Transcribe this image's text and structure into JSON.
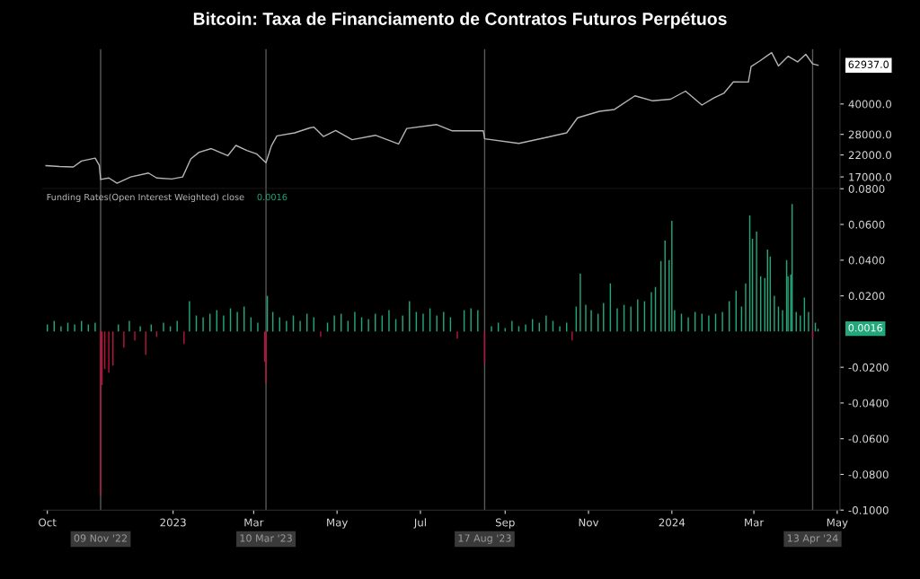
{
  "chart_data": [
    {
      "type": "line",
      "title": "Bitcoin: Taxa de Financiamento de Contratos Futuros Perpétuos",
      "log": "y",
      "grid": false,
      "tick_labels": "y",
      "xlim": [
        "2022-09-28",
        "2024-05-03"
      ],
      "ylim": [
        14800,
        76000
      ],
      "yticks": [
        {
          "value": 17000,
          "label": "17000.0"
        },
        {
          "value": 22000,
          "label": "22000.0"
        },
        {
          "value": 28000,
          "label": "28000.0"
        },
        {
          "value": 40000,
          "label": "40000.0"
        }
      ],
      "x": [
        "2022-09-30",
        "2022-10-10",
        "2022-10-20",
        "2022-10-26",
        "2022-11-05",
        "2022-11-08",
        "2022-11-09",
        "2022-11-15",
        "2022-11-21",
        "2022-12-01",
        "2022-12-14",
        "2022-12-20",
        "2022-12-31",
        "2023-01-08",
        "2023-01-14",
        "2023-01-20",
        "2023-01-29",
        "2023-02-10",
        "2023-02-16",
        "2023-02-24",
        "2023-03-03",
        "2023-03-10",
        "2023-03-14",
        "2023-03-18",
        "2023-03-31",
        "2023-04-11",
        "2023-04-14",
        "2023-04-21",
        "2023-04-30",
        "2023-05-12",
        "2023-05-29",
        "2023-06-15",
        "2023-06-21",
        "2023-07-13",
        "2023-07-24",
        "2023-08-16",
        "2023-08-17",
        "2023-09-11",
        "2023-09-30",
        "2023-10-16",
        "2023-10-24",
        "2023-11-09",
        "2023-11-20",
        "2023-12-05",
        "2023-12-18",
        "2023-12-31",
        "2024-01-11",
        "2024-01-23",
        "2024-02-01",
        "2024-02-08",
        "2024-02-15",
        "2024-02-26",
        "2024-02-28",
        "2024-03-05",
        "2024-03-14",
        "2024-03-19",
        "2024-03-26",
        "2024-04-02",
        "2024-04-08",
        "2024-04-13",
        "2024-04-17"
      ],
      "series": [
        {
          "color": "#b4b4b4",
          "values": [
            19400,
            19200,
            19100,
            20500,
            21200,
            19500,
            16500,
            16800,
            15800,
            17000,
            17800,
            16800,
            16600,
            17000,
            21000,
            22700,
            23700,
            21800,
            24600,
            23200,
            22300,
            20100,
            24500,
            27500,
            28500,
            30200,
            30500,
            27300,
            29300,
            26300,
            27700,
            25000,
            30000,
            31400,
            29200,
            29200,
            26600,
            25200,
            26900,
            28500,
            34000,
            36700,
            37500,
            44000,
            41500,
            42300,
            46500,
            39500,
            43000,
            45300,
            51800,
            51700,
            62000,
            66000,
            73000,
            62500,
            70000,
            65500,
            71600,
            64000,
            62937
          ]
        }
      ],
      "ref_lines": [
        {
          "axis": "x",
          "value": "2022-11-09",
          "color": "#5a5a5a"
        },
        {
          "axis": "x",
          "value": "2023-03-10",
          "color": "#5a5a5a"
        },
        {
          "axis": "x",
          "value": "2023-08-17",
          "color": "#5a5a5a"
        },
        {
          "axis": "x",
          "value": "2024-04-13",
          "color": "#5a5a5a"
        }
      ],
      "annotations": [
        "62937.0"
      ]
    },
    {
      "type": "bar",
      "title": "Funding Rates(Open Interest Weighted) close",
      "grid": false,
      "xlim": [
        "2022-09-28",
        "2024-05-03"
      ],
      "xticks": [
        {
          "value": "2022-10-01",
          "label": "Oct"
        },
        {
          "value": "2023-01-01",
          "label": "2023"
        },
        {
          "value": "2023-03-01",
          "label": "Mar"
        },
        {
          "value": "2023-05-01",
          "label": "May"
        },
        {
          "value": "2023-07-01",
          "label": "Jul"
        },
        {
          "value": "2023-09-01",
          "label": "Sep"
        },
        {
          "value": "2023-11-01",
          "label": "Nov"
        },
        {
          "value": "2024-01-01",
          "label": "2024"
        },
        {
          "value": "2024-03-01",
          "label": "Mar"
        },
        {
          "value": "2024-05-01",
          "label": "May"
        }
      ],
      "ylim": [
        -0.1,
        0.08
      ],
      "yticks": [
        {
          "value": -0.1,
          "label": "-0.1000"
        },
        {
          "value": -0.08,
          "label": "-0.0800"
        },
        {
          "value": -0.06,
          "label": "-0.0600"
        },
        {
          "value": -0.04,
          "label": "-0.0400"
        },
        {
          "value": -0.02,
          "label": "-0.0200"
        },
        {
          "value": 0.02,
          "label": "0.0200"
        },
        {
          "value": 0.04,
          "label": "0.0400"
        },
        {
          "value": 0.06,
          "label": "0.0600"
        },
        {
          "value": 0.08,
          "label": "0.0800"
        }
      ],
      "series": [
        {
          "color": "#22a67a",
          "x": [
            "2022-10-01",
            "2022-10-06",
            "2022-10-11",
            "2022-10-16",
            "2022-10-21",
            "2022-10-26",
            "2022-10-31",
            "2022-11-05",
            "2022-11-22",
            "2022-11-30",
            "2022-12-08",
            "2022-12-16",
            "2022-12-25",
            "2022-12-30",
            "2023-01-04",
            "2023-01-13",
            "2023-01-18",
            "2023-01-23",
            "2023-01-28",
            "2023-02-02",
            "2023-02-07",
            "2023-02-12",
            "2023-02-17",
            "2023-02-22",
            "2023-02-27",
            "2023-03-04",
            "2023-03-11",
            "2023-03-15",
            "2023-03-20",
            "2023-03-25",
            "2023-03-30",
            "2023-04-04",
            "2023-04-09",
            "2023-04-14",
            "2023-04-24",
            "2023-04-29",
            "2023-05-04",
            "2023-05-09",
            "2023-05-14",
            "2023-05-19",
            "2023-05-24",
            "2023-05-29",
            "2023-06-03",
            "2023-06-08",
            "2023-06-13",
            "2023-06-18",
            "2023-06-23",
            "2023-06-28",
            "2023-07-03",
            "2023-07-08",
            "2023-07-13",
            "2023-07-18",
            "2023-07-23",
            "2023-08-02",
            "2023-08-07",
            "2023-08-12",
            "2023-08-22",
            "2023-08-27",
            "2023-09-01",
            "2023-09-06",
            "2023-09-11",
            "2023-09-16",
            "2023-09-21",
            "2023-09-26",
            "2023-10-01",
            "2023-10-06",
            "2023-10-11",
            "2023-10-16",
            "2023-10-23",
            "2023-10-26",
            "2023-10-30",
            "2023-11-03",
            "2023-11-08",
            "2023-11-12",
            "2023-11-17",
            "2023-11-22",
            "2023-11-27",
            "2023-12-02",
            "2023-12-07",
            "2023-12-12",
            "2023-12-17",
            "2023-12-20",
            "2023-12-24",
            "2023-12-27",
            "2023-12-30",
            "2024-01-01",
            "2024-01-03",
            "2024-01-08",
            "2024-01-13",
            "2024-01-18",
            "2024-01-23",
            "2024-01-28",
            "2024-02-02",
            "2024-02-07",
            "2024-02-12",
            "2024-02-17",
            "2024-02-21",
            "2024-02-24",
            "2024-02-27",
            "2024-02-29",
            "2024-03-03",
            "2024-03-06",
            "2024-03-09",
            "2024-03-11",
            "2024-03-13",
            "2024-03-16",
            "2024-03-19",
            "2024-03-22",
            "2024-03-25",
            "2024-03-26",
            "2024-03-28",
            "2024-03-29",
            "2024-04-01",
            "2024-04-04",
            "2024-04-07",
            "2024-04-10",
            "2024-04-15",
            "2024-04-17"
          ],
          "values": [
            0.004,
            0.006,
            0.003,
            0.005,
            0.004,
            0.006,
            0.004,
            0.005,
            0.004,
            0.006,
            0.003,
            0.004,
            0.005,
            0.003,
            0.006,
            0.017,
            0.009,
            0.008,
            0.01,
            0.012,
            0.009,
            0.013,
            0.011,
            0.014,
            0.008,
            0.005,
            0.02,
            0.011,
            0.008,
            0.006,
            0.009,
            0.006,
            0.01,
            0.008,
            0.005,
            0.009,
            0.01,
            0.006,
            0.011,
            0.008,
            0.007,
            0.01,
            0.009,
            0.012,
            0.007,
            0.009,
            0.017,
            0.011,
            0.01,
            0.013,
            0.009,
            0.011,
            0.008,
            0.012,
            0.013,
            0.012,
            0.003,
            0.005,
            0.002,
            0.006,
            0.003,
            0.004,
            0.007,
            0.005,
            0.009,
            0.006,
            0.003,
            0.005,
            0.014,
            0.0325,
            0.015,
            0.012,
            0.01,
            0.016,
            0.027,
            0.013,
            0.015,
            0.014,
            0.018,
            0.017,
            0.022,
            0.025,
            0.0395,
            0.051,
            0.04,
            0.062,
            0.012,
            0.01,
            0.008,
            0.011,
            0.01,
            0.009,
            0.01,
            0.011,
            0.017,
            0.023,
            0.014,
            0.027,
            0.065,
            0.052,
            0.056,
            0.031,
            0.03,
            0.046,
            0.042,
            0.02,
            0.014,
            0.012,
            0.04,
            0.031,
            0.032,
            0.0715,
            0.011,
            0.009,
            0.019,
            0.011,
            0.005,
            0.0016
          ]
        },
        {
          "color": "#b3163c",
          "x": [
            "2022-11-09",
            "2022-11-10",
            "2022-11-12",
            "2022-11-15",
            "2022-11-18",
            "2022-11-26",
            "2022-12-04",
            "2022-12-12",
            "2022-12-20",
            "2023-01-09",
            "2023-03-09",
            "2023-03-10",
            "2023-04-19",
            "2023-07-28",
            "2023-08-17",
            "2023-10-20",
            "2024-04-13"
          ],
          "values": [
            -0.092,
            -0.03,
            -0.021,
            -0.023,
            -0.019,
            -0.009,
            -0.005,
            -0.013,
            -0.003,
            -0.007,
            -0.017,
            -0.029,
            -0.003,
            -0.004,
            -0.018,
            -0.005,
            -0.0035
          ]
        }
      ],
      "ref_lines": [
        {
          "axis": "x",
          "value": "2022-11-09",
          "label": "09 Nov '22",
          "color": "#5a5a5a"
        },
        {
          "axis": "x",
          "value": "2023-03-10",
          "label": "10 Mar '23",
          "color": "#5a5a5a"
        },
        {
          "axis": "x",
          "value": "2023-08-17",
          "label": "17 Aug '23",
          "color": "#5a5a5a"
        },
        {
          "axis": "x",
          "value": "2024-04-13",
          "label": "13 Apr '24",
          "color": "#5a5a5a"
        }
      ],
      "annotations": [
        "0.0016",
        "0.0016"
      ]
    }
  ]
}
